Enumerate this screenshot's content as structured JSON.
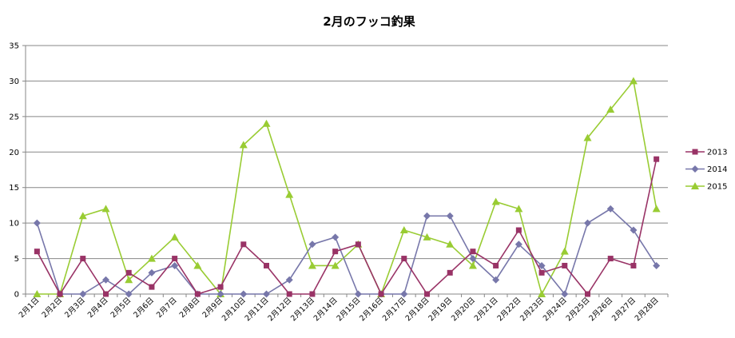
{
  "chart_data": {
    "type": "line",
    "title": "2月のフッコ釣果",
    "xlabel": "",
    "ylabel": "",
    "ylim": [
      0,
      35
    ],
    "yticks": [
      0,
      5,
      10,
      15,
      20,
      25,
      30,
      35
    ],
    "grid": true,
    "legend": "right",
    "categories": [
      "2月1日",
      "2月2日",
      "2月3日",
      "2月4日",
      "2月5日",
      "2月6日",
      "2月7日",
      "2月8日",
      "2月9日",
      "2月10日",
      "2月11日",
      "2月12日",
      "2月13日",
      "2月14日",
      "2月15日",
      "2月16日",
      "2月17日",
      "2月18日",
      "2月19日",
      "2月20日",
      "2月21日",
      "2月22日",
      "2月23日",
      "2月24日",
      "2月25日",
      "2月26日",
      "2月27日",
      "2月28日"
    ],
    "series": [
      {
        "name": "2013",
        "color": "#993366",
        "marker": "square",
        "values": [
          6,
          0,
          5,
          0,
          3,
          1,
          5,
          0,
          1,
          7,
          4,
          0,
          0,
          6,
          7,
          0,
          5,
          0,
          3,
          6,
          4,
          9,
          3,
          4,
          0,
          5,
          4,
          19
        ]
      },
      {
        "name": "2014",
        "color": "#7777aa",
        "marker": "diamond",
        "values": [
          10,
          0,
          0,
          2,
          0,
          3,
          4,
          0,
          0,
          0,
          0,
          2,
          7,
          8,
          0,
          0,
          0,
          11,
          11,
          5,
          2,
          7,
          4,
          0,
          10,
          12,
          9,
          4
        ]
      },
      {
        "name": "2015",
        "color": "#99cc33",
        "marker": "triangle",
        "values": [
          0,
          0,
          11,
          12,
          2,
          5,
          8,
          4,
          0,
          21,
          24,
          14,
          4,
          4,
          7,
          0,
          9,
          8,
          7,
          4,
          13,
          12,
          0,
          6,
          22,
          26,
          30,
          12
        ]
      }
    ]
  }
}
